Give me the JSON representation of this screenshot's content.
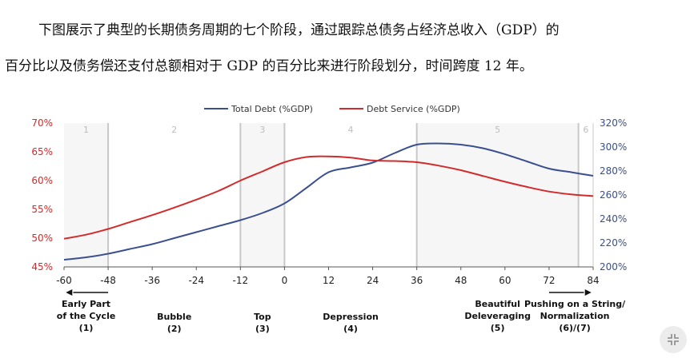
{
  "intro": {
    "line1": "下图展示了典型的长期债务周期的七个阶段，通过跟踪总债务占经济总收入（GDP）的",
    "line2": "百分比以及债务偿还支付总额相对于 GDP 的百分比来进行阶段划分，时间跨度 12 年。"
  },
  "chart_data": {
    "type": "line",
    "legend": [
      "Total Debt (%GDP)",
      "Debt Service (%GDP)"
    ],
    "x_ticks": [
      "-60",
      "-48",
      "-36",
      "-24",
      "-12",
      "0",
      "12",
      "24",
      "36",
      "48",
      "60",
      "72",
      "84"
    ],
    "xlim": [
      -60,
      84
    ],
    "y_left": {
      "ticks": [
        "45%",
        "50%",
        "55%",
        "60%",
        "65%",
        "70%"
      ],
      "lim": [
        45,
        70
      ],
      "color": "#d22b2b"
    },
    "y_right": {
      "ticks": [
        "200%",
        "220%",
        "240%",
        "260%",
        "280%",
        "300%",
        "320%"
      ],
      "lim": [
        200,
        320
      ],
      "color": "#3a4f8f"
    },
    "phase_boundaries": [
      -48,
      -12,
      0,
      36,
      80
    ],
    "phase_numbers": [
      {
        "label": "1",
        "x": -54
      },
      {
        "label": "2",
        "x": -30
      },
      {
        "label": "3",
        "x": -6
      },
      {
        "label": "4",
        "x": 18
      },
      {
        "label": "5",
        "x": 58
      },
      {
        "label": "6",
        "x": 82
      }
    ],
    "phase_labels": [
      {
        "lines": [
          "Early Part",
          "of the Cycle",
          "(1)"
        ],
        "x": -54
      },
      {
        "lines": [
          "Bubble",
          "(2)"
        ],
        "x": -30
      },
      {
        "lines": [
          "Top",
          "(3)"
        ],
        "x": -6
      },
      {
        "lines": [
          "Depression",
          "(4)"
        ],
        "x": 18
      },
      {
        "lines": [
          "Beautiful",
          "Deleveraging",
          "(5)"
        ],
        "x": 58
      },
      {
        "lines": [
          "Pushing on a String/",
          "Normalization",
          "(6)/(7)"
        ],
        "x": 79
      }
    ],
    "series": [
      {
        "name": "Total Debt (%GDP)",
        "axis": "right",
        "color": "#3a4f8f",
        "x": [
          -60,
          -54,
          -48,
          -42,
          -36,
          -30,
          -24,
          -18,
          -12,
          -6,
          0,
          6,
          12,
          18,
          24,
          30,
          36,
          42,
          48,
          54,
          60,
          66,
          72,
          78,
          84
        ],
        "values": [
          206,
          208,
          211,
          215,
          219,
          224,
          229,
          234,
          239,
          245,
          253,
          266,
          279,
          283,
          287,
          295,
          302,
          303,
          302,
          299,
          294,
          288,
          282,
          279,
          276
        ]
      },
      {
        "name": "Debt Service (%GDP)",
        "axis": "left",
        "color": "#d22b2b",
        "x": [
          -60,
          -54,
          -48,
          -42,
          -36,
          -30,
          -24,
          -18,
          -12,
          -6,
          0,
          6,
          12,
          18,
          24,
          30,
          36,
          42,
          48,
          54,
          60,
          66,
          72,
          78,
          84
        ],
        "values": [
          49.9,
          50.6,
          51.6,
          52.8,
          54.0,
          55.3,
          56.7,
          58.2,
          60.0,
          61.6,
          63.2,
          64.1,
          64.2,
          64.0,
          63.5,
          63.4,
          63.2,
          62.6,
          61.8,
          60.8,
          59.8,
          58.9,
          58.1,
          57.6,
          57.3
        ]
      }
    ]
  },
  "ui": {
    "expand_icon": "collapse-icon"
  }
}
